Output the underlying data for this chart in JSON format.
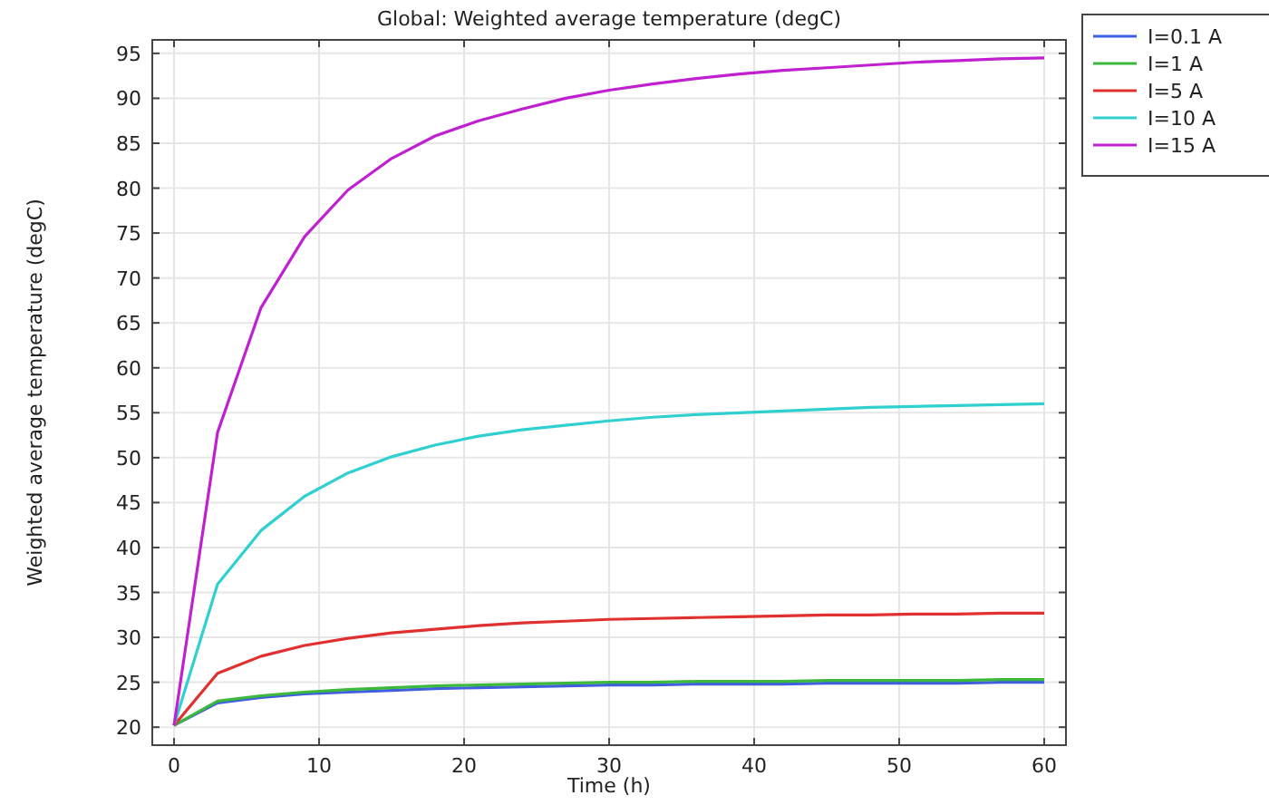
{
  "chart_data": {
    "type": "line",
    "title": "Global: Weighted average temperature (degC)",
    "xlabel": "Time (h)",
    "ylabel": "Weighted average temperature (degC)",
    "x": [
      0,
      3,
      6,
      9,
      12,
      15,
      18,
      21,
      24,
      27,
      30,
      33,
      36,
      39,
      42,
      45,
      48,
      51,
      54,
      57,
      60
    ],
    "xlim": [
      -1.5,
      61.5
    ],
    "xticks": [
      0,
      10,
      20,
      30,
      40,
      50,
      60
    ],
    "ylim": [
      18,
      96.5
    ],
    "yticks": [
      20,
      25,
      30,
      35,
      40,
      45,
      50,
      55,
      60,
      65,
      70,
      75,
      80,
      85,
      90,
      95
    ],
    "grid": true,
    "legend": "top right",
    "line_style": "solid",
    "marker": "none",
    "series": [
      {
        "name": "I=0.1 A",
        "color": "#3f5fe0",
        "values": [
          20.2,
          22.7,
          23.3,
          23.7,
          23.9,
          24.1,
          24.3,
          24.4,
          24.5,
          24.6,
          24.7,
          24.7,
          24.8,
          24.8,
          24.8,
          24.9,
          24.9,
          24.9,
          24.9,
          25.0,
          25.0
        ]
      },
      {
        "name": "I=1 A",
        "color": "#3cb83c",
        "values": [
          20.2,
          22.9,
          23.5,
          23.9,
          24.2,
          24.4,
          24.6,
          24.7,
          24.8,
          24.9,
          25.0,
          25.0,
          25.1,
          25.1,
          25.1,
          25.2,
          25.2,
          25.2,
          25.2,
          25.3,
          25.3
        ]
      },
      {
        "name": "I=5 A",
        "color": "#e03030",
        "values": [
          20.2,
          26.0,
          27.9,
          29.1,
          29.9,
          30.5,
          30.9,
          31.3,
          31.6,
          31.8,
          32.0,
          32.1,
          32.2,
          32.3,
          32.4,
          32.5,
          32.5,
          32.6,
          32.6,
          32.7,
          32.7
        ]
      },
      {
        "name": "I=10 A",
        "color": "#30d0d0",
        "values": [
          20.2,
          35.9,
          41.9,
          45.7,
          48.3,
          50.1,
          51.4,
          52.4,
          53.1,
          53.6,
          54.1,
          54.5,
          54.8,
          55.0,
          55.2,
          55.4,
          55.6,
          55.7,
          55.8,
          55.9,
          56.0
        ]
      },
      {
        "name": "I=15 A",
        "color": "#c020d0",
        "values": [
          20.2,
          52.8,
          66.7,
          74.6,
          79.8,
          83.3,
          85.8,
          87.5,
          88.8,
          90.0,
          90.9,
          91.6,
          92.2,
          92.7,
          93.1,
          93.4,
          93.7,
          94.0,
          94.2,
          94.4,
          94.5
        ]
      }
    ]
  }
}
